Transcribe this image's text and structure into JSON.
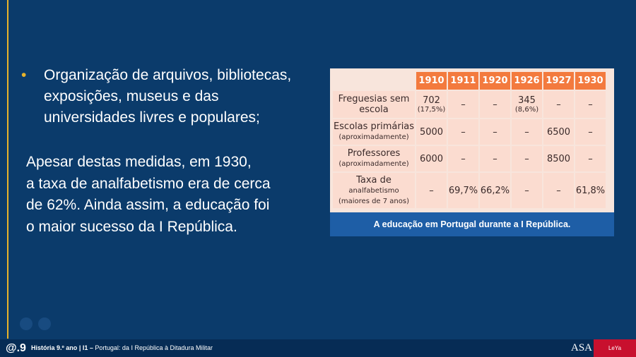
{
  "bullet": {
    "marker": "•",
    "lines": [
      "Organização de arquivos, bibliotecas,",
      "exposições, museus e das",
      "universidades livres e populares;"
    ]
  },
  "paragraph": [
    "Apesar destas medidas, em 1930,",
    "a taxa de analfabetismo era de cerca",
    "de 62%. Ainda assim, a educação foi",
    "o maior sucesso da I República."
  ],
  "table": {
    "header": [
      "1910",
      "1911",
      "1920",
      "1926",
      "1927",
      "1930"
    ],
    "rows": [
      {
        "label": [
          "Freguesias sem",
          "escola"
        ],
        "cells": [
          [
            "702",
            "(17,5%)"
          ],
          [
            "–"
          ],
          [
            "–"
          ],
          [
            "345",
            "(8,6%)"
          ],
          [
            "–"
          ],
          [
            "–"
          ]
        ]
      },
      {
        "label": [
          "Escolas primárias",
          "(aproximadamente)"
        ],
        "cells": [
          [
            "5000"
          ],
          [
            "–"
          ],
          [
            "–"
          ],
          [
            "–"
          ],
          [
            "6500"
          ],
          [
            "–"
          ]
        ]
      },
      {
        "label": [
          "Professores",
          "(aproximadamente)"
        ],
        "cells": [
          [
            "6000"
          ],
          [
            "–"
          ],
          [
            "–"
          ],
          [
            "–"
          ],
          [
            "8500"
          ],
          [
            "–"
          ]
        ]
      },
      {
        "label": [
          "Taxa de",
          "analfabetismo",
          "(maiores de 7 anos)"
        ],
        "cells": [
          [
            "–"
          ],
          [
            "69,7%"
          ],
          [
            "66,2%"
          ],
          [
            "–"
          ],
          [
            "–"
          ],
          [
            "61,8%"
          ]
        ]
      }
    ],
    "caption": "A educação em Portugal durante a I República."
  },
  "footer": {
    "logo": "@.9",
    "course": "História 9.º ano",
    "separator": "|",
    "unit": "I1 –",
    "topic": "Portugal: da I República à Ditadura Militar",
    "publisher": "ASA",
    "brand": "LeYa EDUCAÇÃO"
  }
}
